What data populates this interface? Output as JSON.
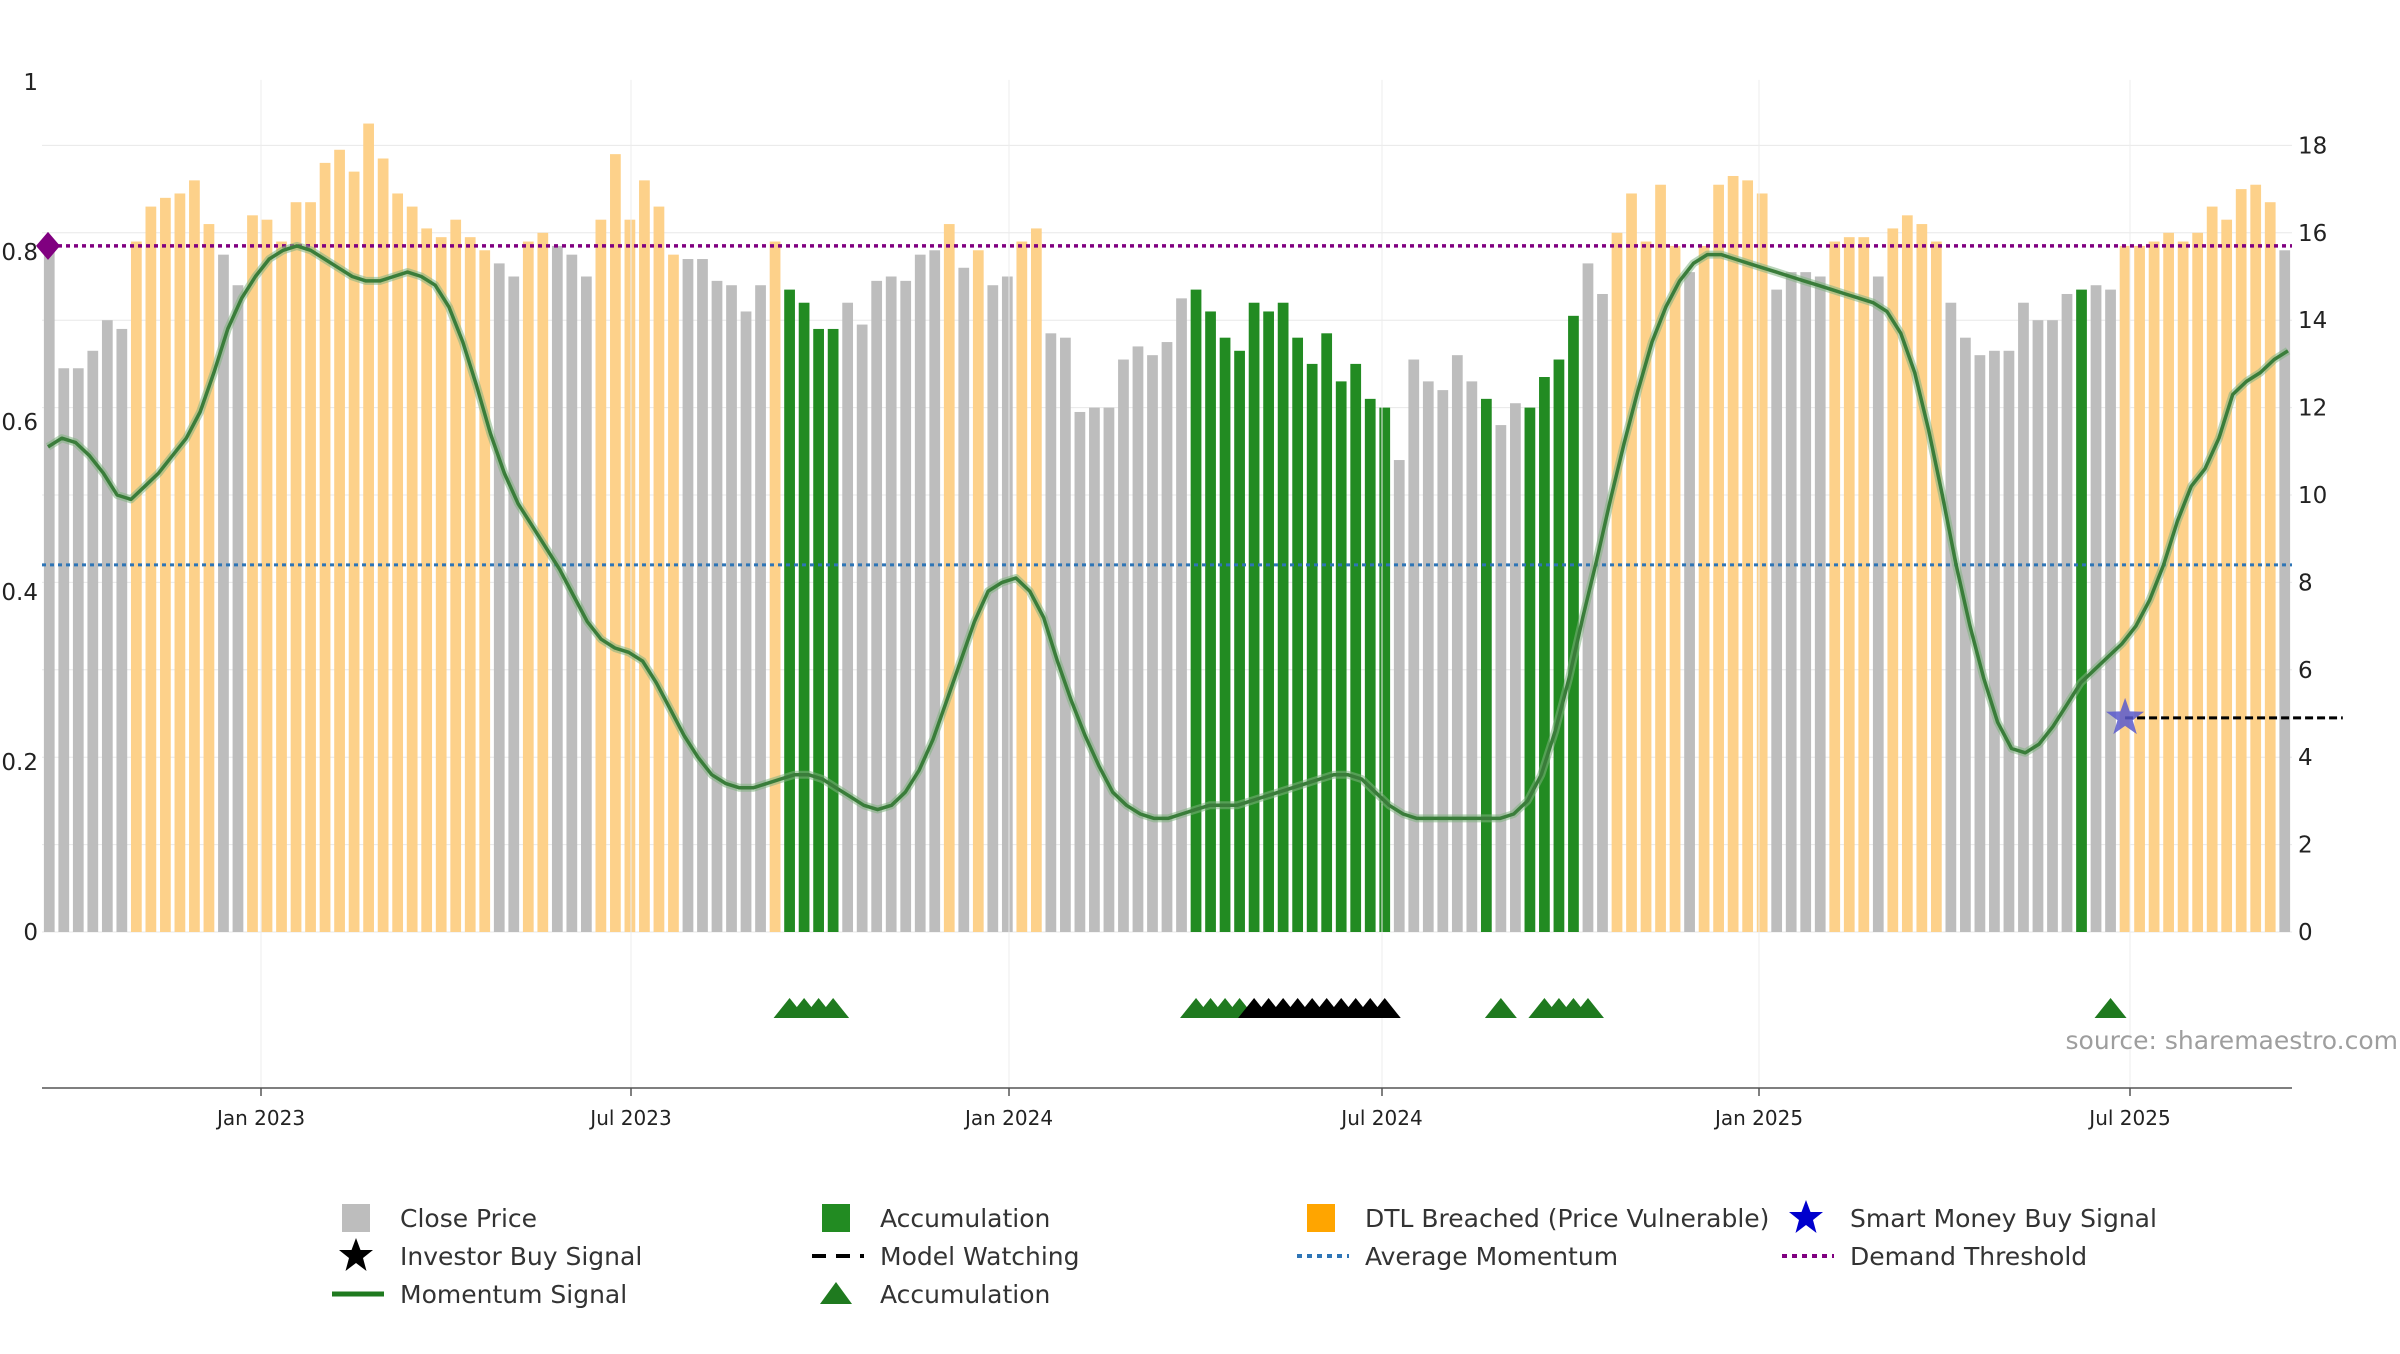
{
  "chart_data": {
    "type": "bar",
    "left_axis": {
      "ticks": [
        "0",
        "0.2",
        "0.4",
        "0.6",
        "0.8",
        "1"
      ],
      "ylim": [
        0,
        1
      ]
    },
    "right_axis": {
      "ticks": [
        "0",
        "2",
        "4",
        "6",
        "8",
        "10",
        "12",
        "14",
        "16",
        "18"
      ],
      "ylim": [
        0,
        19.5
      ]
    },
    "x_ticks": [
      "Jan 2023",
      "Jul 2023",
      "Jan 2024",
      "Jul 2024",
      "Jan 2025",
      "Jul 2025"
    ],
    "source_text": "source: sharemaestro.com",
    "grid": true,
    "colors": {
      "close": "#bdbdbd",
      "accumulation": "#228b22",
      "dtl": "#fdd18a",
      "momentum": "#3a7d3a",
      "demand": "#800080",
      "avg": "#2e75b6",
      "investor": "#000000",
      "smart_money": "#0000cd"
    },
    "bars": [
      {
        "v": 15.6,
        "c": "close"
      },
      {
        "v": 12.9,
        "c": "close"
      },
      {
        "v": 12.9,
        "c": "close"
      },
      {
        "v": 13.3,
        "c": "close"
      },
      {
        "v": 14.0,
        "c": "close"
      },
      {
        "v": 13.8,
        "c": "close"
      },
      {
        "v": 15.8,
        "c": "dtl"
      },
      {
        "v": 16.6,
        "c": "dtl"
      },
      {
        "v": 16.8,
        "c": "dtl"
      },
      {
        "v": 16.9,
        "c": "dtl"
      },
      {
        "v": 17.2,
        "c": "dtl"
      },
      {
        "v": 16.2,
        "c": "dtl"
      },
      {
        "v": 15.5,
        "c": "close"
      },
      {
        "v": 14.8,
        "c": "close"
      },
      {
        "v": 16.4,
        "c": "dtl"
      },
      {
        "v": 16.3,
        "c": "dtl"
      },
      {
        "v": 15.8,
        "c": "dtl"
      },
      {
        "v": 16.7,
        "c": "dtl"
      },
      {
        "v": 16.7,
        "c": "dtl"
      },
      {
        "v": 17.6,
        "c": "dtl"
      },
      {
        "v": 17.9,
        "c": "dtl"
      },
      {
        "v": 17.4,
        "c": "dtl"
      },
      {
        "v": 18.5,
        "c": "dtl"
      },
      {
        "v": 17.7,
        "c": "dtl"
      },
      {
        "v": 16.9,
        "c": "dtl"
      },
      {
        "v": 16.6,
        "c": "dtl"
      },
      {
        "v": 16.1,
        "c": "dtl"
      },
      {
        "v": 15.9,
        "c": "dtl"
      },
      {
        "v": 16.3,
        "c": "dtl"
      },
      {
        "v": 15.9,
        "c": "dtl"
      },
      {
        "v": 15.6,
        "c": "dtl"
      },
      {
        "v": 15.3,
        "c": "close"
      },
      {
        "v": 15.0,
        "c": "close"
      },
      {
        "v": 15.8,
        "c": "dtl"
      },
      {
        "v": 16.0,
        "c": "dtl"
      },
      {
        "v": 15.7,
        "c": "close"
      },
      {
        "v": 15.5,
        "c": "close"
      },
      {
        "v": 15.0,
        "c": "close"
      },
      {
        "v": 16.3,
        "c": "dtl"
      },
      {
        "v": 17.8,
        "c": "dtl"
      },
      {
        "v": 16.3,
        "c": "dtl"
      },
      {
        "v": 17.2,
        "c": "dtl"
      },
      {
        "v": 16.6,
        "c": "dtl"
      },
      {
        "v": 15.5,
        "c": "dtl"
      },
      {
        "v": 15.4,
        "c": "close"
      },
      {
        "v": 15.4,
        "c": "close"
      },
      {
        "v": 14.9,
        "c": "close"
      },
      {
        "v": 14.8,
        "c": "close"
      },
      {
        "v": 14.2,
        "c": "close"
      },
      {
        "v": 14.8,
        "c": "close"
      },
      {
        "v": 15.8,
        "c": "dtl"
      },
      {
        "v": 14.7,
        "c": "acc"
      },
      {
        "v": 14.4,
        "c": "acc"
      },
      {
        "v": 13.8,
        "c": "acc"
      },
      {
        "v": 13.8,
        "c": "acc"
      },
      {
        "v": 14.4,
        "c": "close"
      },
      {
        "v": 13.9,
        "c": "close"
      },
      {
        "v": 14.9,
        "c": "close"
      },
      {
        "v": 15.0,
        "c": "close"
      },
      {
        "v": 14.9,
        "c": "close"
      },
      {
        "v": 15.5,
        "c": "close"
      },
      {
        "v": 15.6,
        "c": "close"
      },
      {
        "v": 16.2,
        "c": "dtl"
      },
      {
        "v": 15.2,
        "c": "close"
      },
      {
        "v": 15.6,
        "c": "dtl"
      },
      {
        "v": 14.8,
        "c": "close"
      },
      {
        "v": 15.0,
        "c": "close"
      },
      {
        "v": 15.8,
        "c": "dtl"
      },
      {
        "v": 16.1,
        "c": "dtl"
      },
      {
        "v": 13.7,
        "c": "close"
      },
      {
        "v": 13.6,
        "c": "close"
      },
      {
        "v": 11.9,
        "c": "close"
      },
      {
        "v": 12.0,
        "c": "close"
      },
      {
        "v": 12.0,
        "c": "close"
      },
      {
        "v": 13.1,
        "c": "close"
      },
      {
        "v": 13.4,
        "c": "close"
      },
      {
        "v": 13.2,
        "c": "close"
      },
      {
        "v": 13.5,
        "c": "close"
      },
      {
        "v": 14.5,
        "c": "close"
      },
      {
        "v": 14.7,
        "c": "acc"
      },
      {
        "v": 14.2,
        "c": "acc"
      },
      {
        "v": 13.6,
        "c": "acc"
      },
      {
        "v": 13.3,
        "c": "acc"
      },
      {
        "v": 14.4,
        "c": "acc"
      },
      {
        "v": 14.2,
        "c": "acc"
      },
      {
        "v": 14.4,
        "c": "acc"
      },
      {
        "v": 13.6,
        "c": "acc"
      },
      {
        "v": 13.0,
        "c": "acc"
      },
      {
        "v": 13.7,
        "c": "acc"
      },
      {
        "v": 12.6,
        "c": "acc"
      },
      {
        "v": 13.0,
        "c": "acc"
      },
      {
        "v": 12.2,
        "c": "acc"
      },
      {
        "v": 12.0,
        "c": "acc"
      },
      {
        "v": 10.8,
        "c": "close"
      },
      {
        "v": 13.1,
        "c": "close"
      },
      {
        "v": 12.6,
        "c": "close"
      },
      {
        "v": 12.4,
        "c": "close"
      },
      {
        "v": 13.2,
        "c": "close"
      },
      {
        "v": 12.6,
        "c": "close"
      },
      {
        "v": 12.2,
        "c": "acc"
      },
      {
        "v": 11.6,
        "c": "close"
      },
      {
        "v": 12.1,
        "c": "close"
      },
      {
        "v": 12.0,
        "c": "acc"
      },
      {
        "v": 12.7,
        "c": "acc"
      },
      {
        "v": 13.1,
        "c": "acc"
      },
      {
        "v": 14.1,
        "c": "acc"
      },
      {
        "v": 15.3,
        "c": "close"
      },
      {
        "v": 14.6,
        "c": "close"
      },
      {
        "v": 16.0,
        "c": "dtl"
      },
      {
        "v": 16.9,
        "c": "dtl"
      },
      {
        "v": 15.8,
        "c": "dtl"
      },
      {
        "v": 17.1,
        "c": "dtl"
      },
      {
        "v": 15.7,
        "c": "dtl"
      },
      {
        "v": 15.1,
        "c": "close"
      },
      {
        "v": 15.7,
        "c": "dtl"
      },
      {
        "v": 17.1,
        "c": "dtl"
      },
      {
        "v": 17.3,
        "c": "dtl"
      },
      {
        "v": 17.2,
        "c": "dtl"
      },
      {
        "v": 16.9,
        "c": "dtl"
      },
      {
        "v": 14.7,
        "c": "close"
      },
      {
        "v": 15.1,
        "c": "close"
      },
      {
        "v": 15.1,
        "c": "close"
      },
      {
        "v": 15.0,
        "c": "close"
      },
      {
        "v": 15.8,
        "c": "dtl"
      },
      {
        "v": 15.9,
        "c": "dtl"
      },
      {
        "v": 15.9,
        "c": "dtl"
      },
      {
        "v": 15.0,
        "c": "close"
      },
      {
        "v": 16.1,
        "c": "dtl"
      },
      {
        "v": 16.4,
        "c": "dtl"
      },
      {
        "v": 16.2,
        "c": "dtl"
      },
      {
        "v": 15.8,
        "c": "dtl"
      },
      {
        "v": 14.4,
        "c": "close"
      },
      {
        "v": 13.6,
        "c": "close"
      },
      {
        "v": 13.2,
        "c": "close"
      },
      {
        "v": 13.3,
        "c": "close"
      },
      {
        "v": 13.3,
        "c": "close"
      },
      {
        "v": 14.4,
        "c": "close"
      },
      {
        "v": 14.0,
        "c": "close"
      },
      {
        "v": 14.0,
        "c": "close"
      },
      {
        "v": 14.6,
        "c": "close"
      },
      {
        "v": 14.7,
        "c": "acc"
      },
      {
        "v": 14.8,
        "c": "close"
      },
      {
        "v": 14.7,
        "c": "close"
      },
      {
        "v": 15.7,
        "c": "dtl"
      },
      {
        "v": 15.7,
        "c": "dtl"
      },
      {
        "v": 15.8,
        "c": "dtl"
      },
      {
        "v": 16.0,
        "c": "dtl"
      },
      {
        "v": 15.8,
        "c": "dtl"
      },
      {
        "v": 16.0,
        "c": "dtl"
      },
      {
        "v": 16.6,
        "c": "dtl"
      },
      {
        "v": 16.3,
        "c": "dtl"
      },
      {
        "v": 17.0,
        "c": "dtl"
      },
      {
        "v": 17.1,
        "c": "dtl"
      },
      {
        "v": 16.7,
        "c": "dtl"
      },
      {
        "v": 15.6,
        "c": "close"
      }
    ],
    "momentum": [
      11.1,
      11.3,
      11.2,
      10.9,
      10.5,
      10.0,
      9.9,
      10.2,
      10.5,
      10.9,
      11.3,
      11.9,
      12.8,
      13.8,
      14.5,
      15.0,
      15.4,
      15.6,
      15.7,
      15.6,
      15.4,
      15.2,
      15.0,
      14.9,
      14.9,
      15.0,
      15.1,
      15.0,
      14.8,
      14.3,
      13.5,
      12.5,
      11.4,
      10.5,
      9.8,
      9.3,
      8.8,
      8.3,
      7.7,
      7.1,
      6.7,
      6.5,
      6.4,
      6.2,
      5.7,
      5.1,
      4.5,
      4.0,
      3.6,
      3.4,
      3.3,
      3.3,
      3.4,
      3.5,
      3.6,
      3.6,
      3.5,
      3.3,
      3.1,
      2.9,
      2.8,
      2.9,
      3.2,
      3.7,
      4.4,
      5.3,
      6.2,
      7.1,
      7.8,
      8.0,
      8.1,
      7.8,
      7.2,
      6.2,
      5.3,
      4.5,
      3.8,
      3.2,
      2.9,
      2.7,
      2.6,
      2.6,
      2.7,
      2.8,
      2.9,
      2.9,
      2.9,
      3.0,
      3.1,
      3.2,
      3.3,
      3.4,
      3.5,
      3.6,
      3.6,
      3.5,
      3.2,
      2.9,
      2.7,
      2.6,
      2.6,
      2.6,
      2.6,
      2.6,
      2.6,
      2.6,
      2.7,
      3.0,
      3.6,
      4.6,
      5.8,
      7.2,
      8.5,
      9.9,
      11.2,
      12.4,
      13.5,
      14.3,
      14.9,
      15.3,
      15.5,
      15.5,
      15.4,
      15.3,
      15.2,
      15.1,
      15.0,
      14.9,
      14.8,
      14.7,
      14.6,
      14.5,
      14.4,
      14.2,
      13.7,
      12.8,
      11.5,
      10.0,
      8.4,
      7.0,
      5.8,
      4.8,
      4.2,
      4.1,
      4.3,
      4.7,
      5.2,
      5.7,
      6.0,
      6.3,
      6.6,
      7.0,
      7.6,
      8.4,
      9.4,
      10.2,
      10.6,
      11.3,
      12.3,
      12.6,
      12.8,
      13.1,
      13.3
    ],
    "demand_threshold": 15.7,
    "average_momentum": 8.4,
    "model_watching": {
      "from_bar": 143,
      "to_bar": 158,
      "value": 4.9
    },
    "smart_money_signal": {
      "bar": 143,
      "value": 4.9
    },
    "demand_marker": {
      "bar": 0,
      "value": 15.7
    },
    "accumulation_markers": [
      51,
      52,
      53,
      54,
      79,
      80,
      81,
      82,
      100,
      103,
      104,
      105,
      106,
      142
    ],
    "investor_markers": [
      83,
      84,
      85,
      86,
      87,
      88,
      89,
      90,
      91,
      92
    ],
    "legend": [
      {
        "label": "Close Price",
        "symbol": "square-gray"
      },
      {
        "label": "Investor Buy Signal",
        "symbol": "star-black"
      },
      {
        "label": "Momentum Signal",
        "symbol": "line-green"
      },
      {
        "label": "Accumulation",
        "symbol": "square-green"
      },
      {
        "label": "Model Watching",
        "symbol": "dash-black"
      },
      {
        "label": "Accumulation",
        "symbol": "triangle-green"
      },
      {
        "label": "DTL Breached (Price Vulnerable)",
        "symbol": "square-orange"
      },
      {
        "label": "Average Momentum",
        "symbol": "dotted-blue"
      },
      {
        "label": "Smart Money Buy Signal",
        "symbol": "star-blue"
      },
      {
        "label": "Demand Threshold",
        "symbol": "dotted-purple"
      }
    ]
  }
}
